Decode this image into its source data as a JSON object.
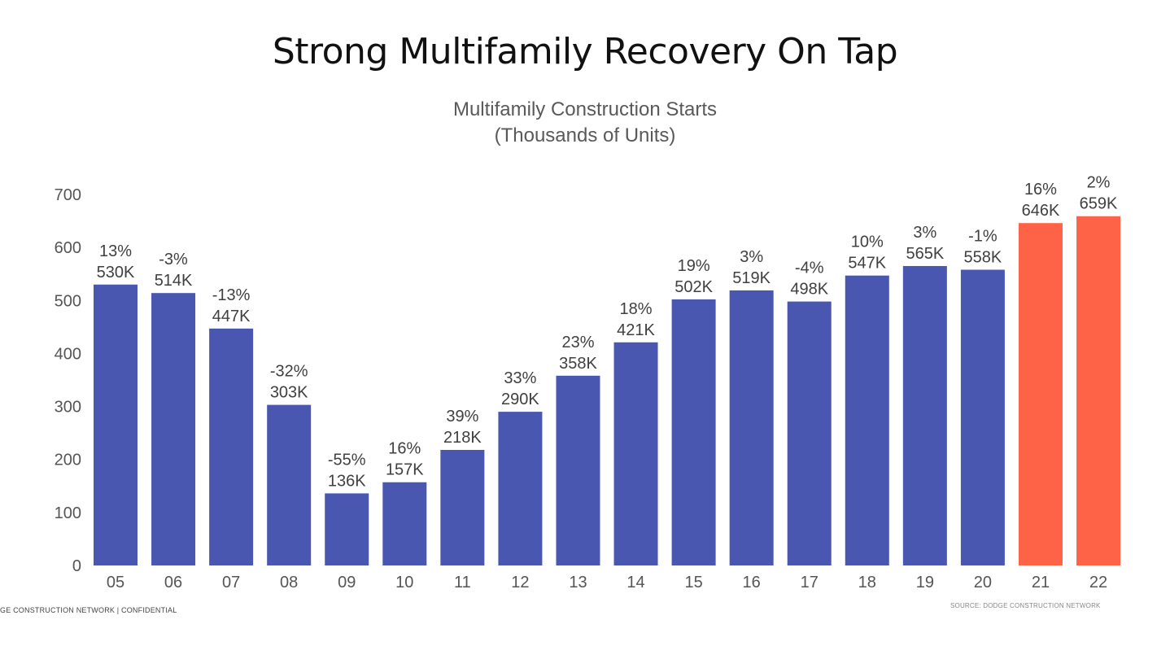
{
  "slide": {
    "title": "Strong Multifamily Recovery On Tap",
    "footer_left": "GE CONSTRUCTION NETWORK  |  CONFIDENTIAL",
    "footer_right": "SOURCE: DODGE CONSTRUCTION NETWORK"
  },
  "chart_data": {
    "type": "bar",
    "title": "Multifamily Construction Starts",
    "subtitle": "(Thousands of Units)",
    "categories": [
      "05",
      "06",
      "07",
      "08",
      "09",
      "10",
      "11",
      "12",
      "13",
      "14",
      "15",
      "16",
      "17",
      "18",
      "19",
      "20",
      "21",
      "22"
    ],
    "values": [
      530,
      514,
      447,
      303,
      136,
      157,
      218,
      290,
      358,
      421,
      502,
      519,
      498,
      547,
      565,
      558,
      646,
      659
    ],
    "value_labels": [
      "530K",
      "514K",
      "447K",
      "303K",
      "136K",
      "157K",
      "218K",
      "290K",
      "358K",
      "421K",
      "502K",
      "519K",
      "498K",
      "547K",
      "565K",
      "558K",
      "646K",
      "659K"
    ],
    "pct_change_labels": [
      "13%",
      "-3%",
      "-13%",
      "-32%",
      "-55%",
      "16%",
      "39%",
      "33%",
      "23%",
      "18%",
      "19%",
      "3%",
      "-4%",
      "10%",
      "3%",
      "-1%",
      "16%",
      "2%"
    ],
    "ylim": [
      0,
      700
    ],
    "yticks": [
      0,
      100,
      200,
      300,
      400,
      500,
      600,
      700
    ],
    "grid": false,
    "colors": {
      "actual": "#4A57B0",
      "forecast": "#FF6347",
      "text": "#404040"
    },
    "forecast_categories": [
      "21",
      "22"
    ]
  }
}
